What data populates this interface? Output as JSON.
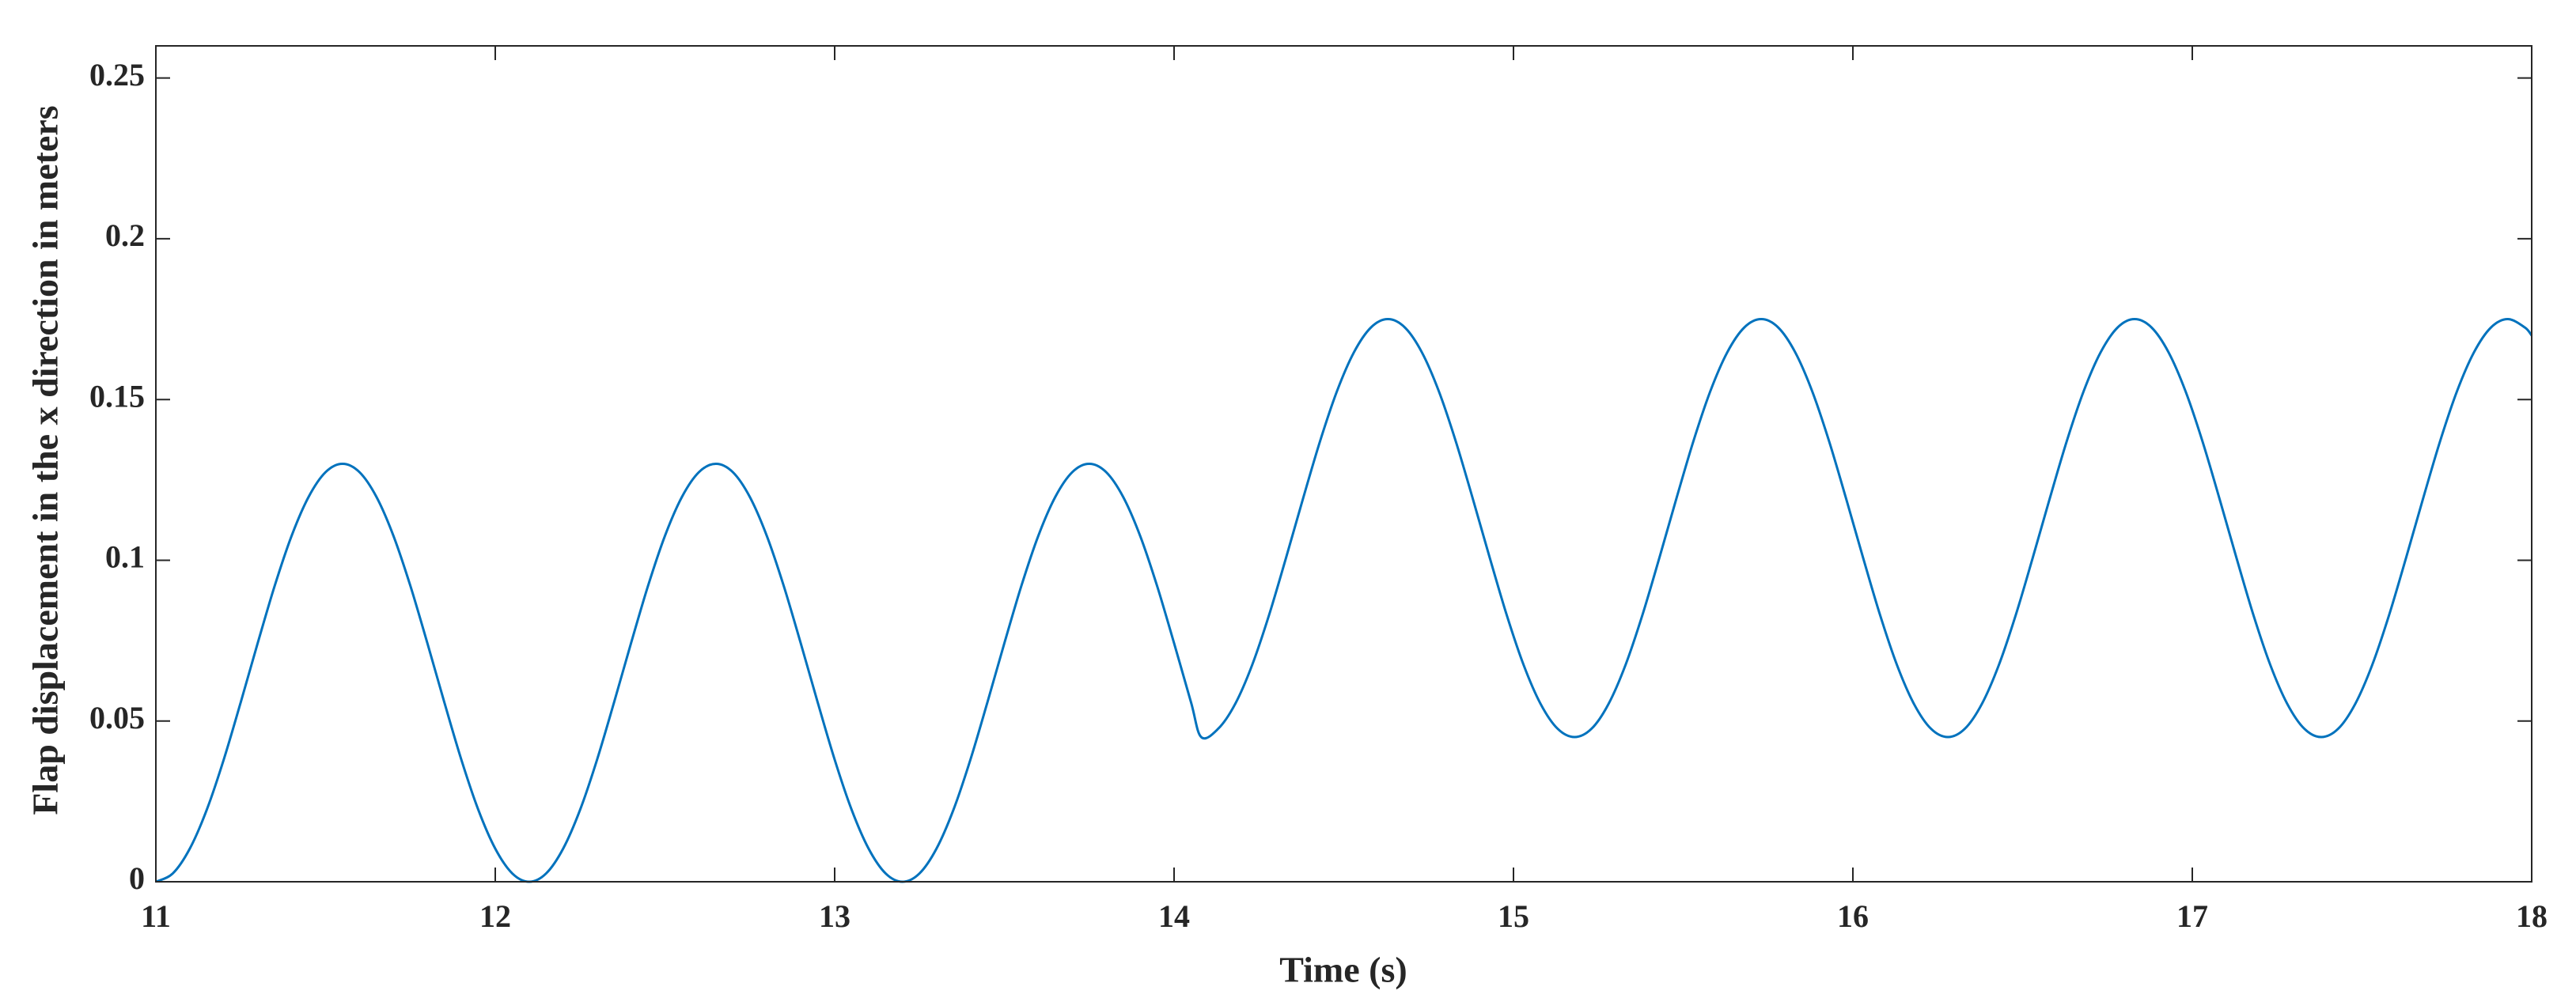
{
  "chart_data": {
    "type": "line",
    "xlabel": "Time (s)",
    "ylabel": "Flap displacement in the x direction in meters",
    "color": "#0072bd",
    "xlim": [
      11,
      18
    ],
    "xticks": [
      11,
      12,
      13,
      14,
      15,
      16,
      17,
      18
    ],
    "ylim": [
      0,
      0.26
    ],
    "yticks": [
      0,
      0.05,
      0.1,
      0.15,
      0.2,
      0.25
    ],
    "box": true,
    "x": [
      11,
      11.05,
      11.1,
      11.15,
      11.2,
      11.25,
      11.3,
      11.35,
      11.4,
      11.45,
      11.5,
      11.55,
      11.6,
      11.65,
      11.7,
      11.75,
      11.8,
      11.85,
      11.9,
      11.95,
      12,
      12.05,
      12.1,
      12.15,
      12.2,
      12.25,
      12.3,
      12.35,
      12.4,
      12.45,
      12.5,
      12.55,
      12.6,
      12.65,
      12.7,
      12.75,
      12.8,
      12.85,
      12.9,
      12.95,
      13,
      13.05,
      13.1,
      13.15,
      13.2,
      13.25,
      13.3,
      13.35,
      13.4,
      13.45,
      13.5,
      13.55,
      13.6,
      13.65,
      13.7,
      13.75,
      13.8,
      13.85,
      13.9,
      13.95,
      14,
      14.05,
      14.08,
      14.13,
      14.18,
      14.23,
      14.28,
      14.33,
      14.38,
      14.43,
      14.48,
      14.53,
      14.58,
      14.63,
      14.68,
      14.73,
      14.78,
      14.83,
      14.88,
      14.93,
      14.98,
      15.03,
      15.08,
      15.13,
      15.18,
      15.23,
      15.28,
      15.33,
      15.38,
      15.43,
      15.48,
      15.53,
      15.58,
      15.63,
      15.68,
      15.73,
      15.78,
      15.83,
      15.88,
      15.93,
      15.98,
      16.03,
      16.08,
      16.13,
      16.18,
      16.23,
      16.28,
      16.33,
      16.38,
      16.43,
      16.48,
      16.53,
      16.58,
      16.63,
      16.68,
      16.73,
      16.78,
      16.83,
      16.88,
      16.93,
      16.98,
      17.03,
      17.08,
      17.13,
      17.18,
      17.23,
      17.28,
      17.33,
      17.38,
      17.43,
      17.48,
      17.53,
      17.58,
      17.63,
      17.68,
      17.73,
      17.78,
      17.83,
      17.88,
      17.93,
      17.98,
      18
    ],
    "values": [
      0,
      0.0026,
      0.0103,
      0.0224,
      0.038,
      0.0558,
      0.0742,
      0.092,
      0.1076,
      0.1197,
      0.1274,
      0.13,
      0.1274,
      0.1197,
      0.1076,
      0.092,
      0.0742,
      0.0558,
      0.038,
      0.0224,
      0.0103,
      0.0026,
      0,
      0.0026,
      0.0103,
      0.0224,
      0.038,
      0.0558,
      0.0742,
      0.092,
      0.1076,
      0.1197,
      0.1274,
      0.13,
      0.1274,
      0.1197,
      0.1076,
      0.092,
      0.0742,
      0.0558,
      0.038,
      0.0224,
      0.0103,
      0.0026,
      0,
      0.0026,
      0.0103,
      0.0224,
      0.038,
      0.0558,
      0.0742,
      0.092,
      0.1076,
      0.1197,
      0.1274,
      0.13,
      0.1274,
      0.1197,
      0.1076,
      0.092,
      0.0742,
      0.0558,
      0.045,
      0.0476,
      0.0553,
      0.0674,
      0.083,
      0.1008,
      0.1192,
      0.137,
      0.1526,
      0.1647,
      0.1724,
      0.175,
      0.1724,
      0.1647,
      0.1526,
      0.137,
      0.1192,
      0.1008,
      0.083,
      0.0674,
      0.0553,
      0.0476,
      0.045,
      0.0476,
      0.0553,
      0.0674,
      0.083,
      0.1008,
      0.1192,
      0.137,
      0.1526,
      0.1647,
      0.1724,
      0.175,
      0.1724,
      0.1647,
      0.1526,
      0.137,
      0.1192,
      0.1008,
      0.083,
      0.0674,
      0.0553,
      0.0476,
      0.045,
      0.0476,
      0.0553,
      0.0674,
      0.083,
      0.1008,
      0.1192,
      0.137,
      0.1526,
      0.1647,
      0.1724,
      0.175,
      0.1724,
      0.1647,
      0.1526,
      0.137,
      0.1192,
      0.1008,
      0.083,
      0.0674,
      0.0553,
      0.0476,
      0.045,
      0.0476,
      0.0553,
      0.0674,
      0.083,
      0.1008,
      0.1192,
      0.137,
      0.1526,
      0.1647,
      0.1724,
      0.175,
      0.1724,
      0.1699
    ]
  }
}
